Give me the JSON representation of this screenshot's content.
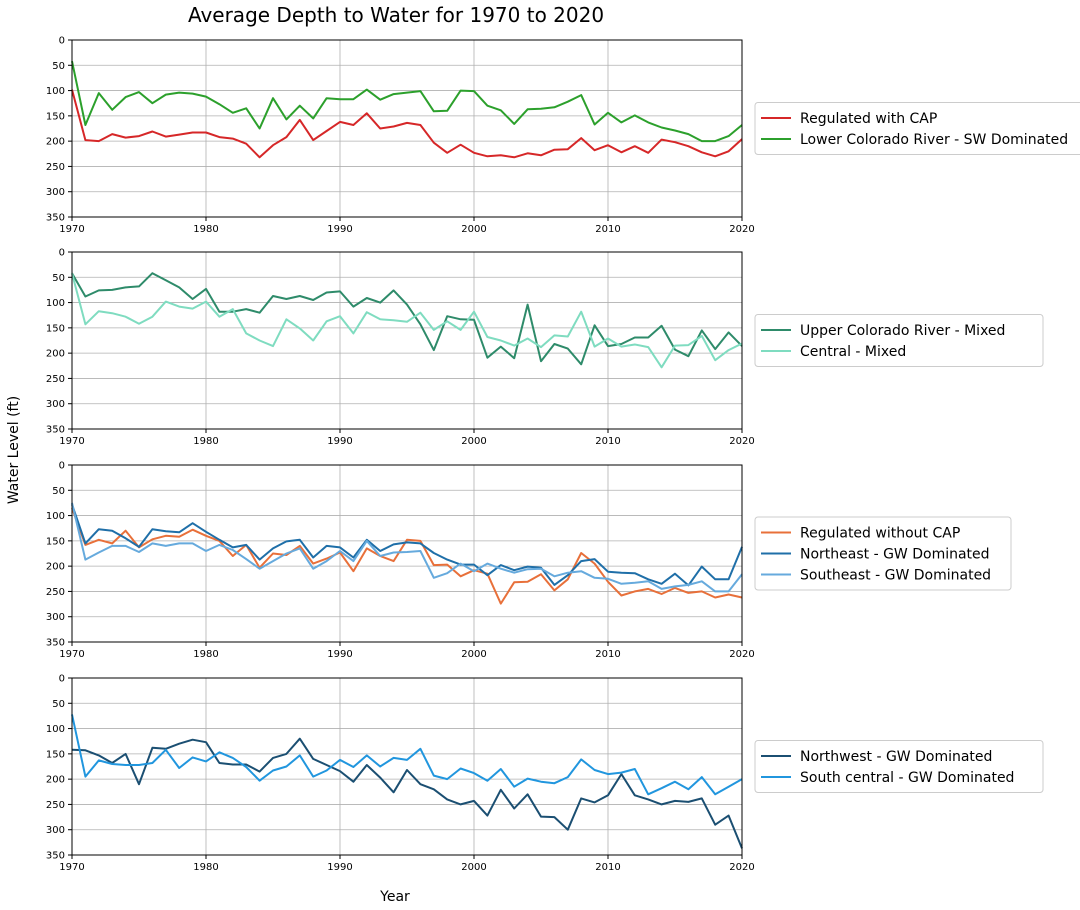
{
  "figure": {
    "title": "Average Depth to Water for 1970 to 2020",
    "xlabel": "Year",
    "ylabel": "Water Level (ft)"
  },
  "chart_data": [
    {
      "type": "line",
      "xlim": [
        1970,
        2020
      ],
      "ylim": [
        350,
        0
      ],
      "y_inverted": true,
      "xticks": [
        1970,
        1980,
        1990,
        2000,
        2010,
        2020
      ],
      "yticks": [
        0,
        50,
        100,
        150,
        200,
        250,
        300,
        350
      ],
      "grid": true,
      "legend_position": "right",
      "x": [
        1970,
        1971,
        1972,
        1973,
        1974,
        1975,
        1976,
        1977,
        1978,
        1979,
        1980,
        1981,
        1982,
        1983,
        1984,
        1985,
        1986,
        1987,
        1988,
        1989,
        1990,
        1991,
        1992,
        1993,
        1994,
        1995,
        1996,
        1997,
        1998,
        1999,
        2000,
        2001,
        2002,
        2003,
        2004,
        2005,
        2006,
        2007,
        2008,
        2009,
        2010,
        2011,
        2012,
        2013,
        2014,
        2015,
        2016,
        2017,
        2018,
        2019,
        2020
      ],
      "series": [
        {
          "name": "Regulated with CAP",
          "color": "#d62728",
          "values": [
            98,
            198,
            200,
            186,
            193,
            190,
            181,
            191,
            187,
            183,
            183,
            192,
            195,
            205,
            232,
            208,
            192,
            158,
            198,
            180,
            162,
            168,
            145,
            175,
            171,
            164,
            168,
            203,
            223,
            207,
            223,
            230,
            228,
            232,
            224,
            228,
            217,
            216,
            194,
            218,
            208,
            222,
            210,
            223,
            197,
            202,
            210,
            222,
            230,
            220,
            196
          ]
        },
        {
          "name": "Lower Colorado River - SW Dominated",
          "color": "#2ca02c",
          "values": [
            42,
            168,
            105,
            138,
            113,
            103,
            125,
            108,
            104,
            106,
            112,
            127,
            144,
            135,
            175,
            115,
            157,
            130,
            155,
            115,
            117,
            117,
            98,
            118,
            107,
            104,
            101,
            141,
            140,
            100,
            101,
            130,
            139,
            166,
            137,
            136,
            133,
            122,
            109,
            167,
            144,
            163,
            149,
            163,
            173,
            179,
            186,
            200,
            200,
            190,
            168
          ]
        }
      ]
    },
    {
      "type": "line",
      "xlim": [
        1970,
        2020
      ],
      "ylim": [
        350,
        0
      ],
      "y_inverted": true,
      "xticks": [
        1970,
        1980,
        1990,
        2000,
        2010,
        2020
      ],
      "yticks": [
        0,
        50,
        100,
        150,
        200,
        250,
        300,
        350
      ],
      "grid": true,
      "legend_position": "right",
      "x": [
        1970,
        1971,
        1972,
        1973,
        1974,
        1975,
        1976,
        1977,
        1978,
        1979,
        1980,
        1981,
        1982,
        1983,
        1984,
        1985,
        1986,
        1987,
        1988,
        1989,
        1990,
        1991,
        1992,
        1993,
        1994,
        1995,
        1996,
        1997,
        1998,
        1999,
        2000,
        2001,
        2002,
        2003,
        2004,
        2005,
        2006,
        2007,
        2008,
        2009,
        2010,
        2011,
        2012,
        2013,
        2014,
        2015,
        2016,
        2017,
        2018,
        2019,
        2020
      ],
      "series": [
        {
          "name": "Upper Colorado River - Mixed",
          "color": "#2e8b6a",
          "values": [
            42,
            88,
            76,
            75,
            70,
            68,
            42,
            56,
            70,
            93,
            73,
            118,
            118,
            113,
            120,
            87,
            93,
            87,
            95,
            80,
            78,
            108,
            91,
            100,
            76,
            104,
            143,
            194,
            127,
            133,
            134,
            209,
            187,
            210,
            104,
            216,
            182,
            191,
            222,
            145,
            186,
            182,
            169,
            169,
            146,
            193,
            206,
            155,
            192,
            159,
            186
          ]
        },
        {
          "name": "Central - Mixed",
          "color": "#7fdcc0",
          "values": [
            42,
            143,
            117,
            121,
            128,
            142,
            128,
            98,
            108,
            112,
            98,
            128,
            113,
            161,
            175,
            186,
            133,
            151,
            175,
            137,
            127,
            161,
            119,
            133,
            135,
            138,
            120,
            154,
            137,
            154,
            118,
            168,
            175,
            185,
            171,
            188,
            165,
            167,
            118,
            187,
            171,
            187,
            183,
            188,
            228,
            185,
            184,
            166,
            214,
            194,
            181
          ]
        }
      ]
    },
    {
      "type": "line",
      "xlim": [
        1970,
        2020
      ],
      "ylim": [
        350,
        0
      ],
      "y_inverted": true,
      "xticks": [
        1970,
        1980,
        1990,
        2000,
        2010,
        2020
      ],
      "yticks": [
        0,
        50,
        100,
        150,
        200,
        250,
        300,
        350
      ],
      "grid": true,
      "legend_position": "right",
      "x": [
        1970,
        1971,
        1972,
        1973,
        1974,
        1975,
        1976,
        1977,
        1978,
        1979,
        1980,
        1981,
        1982,
        1983,
        1984,
        1985,
        1986,
        1987,
        1988,
        1989,
        1990,
        1991,
        1992,
        1993,
        1994,
        1995,
        1996,
        1997,
        1998,
        1999,
        2000,
        2001,
        2002,
        2003,
        2004,
        2005,
        2006,
        2007,
        2008,
        2009,
        2010,
        2011,
        2012,
        2013,
        2014,
        2015,
        2016,
        2017,
        2018,
        2019,
        2020
      ],
      "series": [
        {
          "name": "Regulated without CAP",
          "color": "#e8703a",
          "values": [
            85,
            158,
            148,
            155,
            130,
            163,
            147,
            140,
            142,
            128,
            140,
            150,
            180,
            158,
            203,
            175,
            178,
            160,
            195,
            185,
            173,
            210,
            165,
            180,
            190,
            148,
            150,
            198,
            197,
            220,
            208,
            215,
            274,
            232,
            231,
            216,
            248,
            226,
            174,
            195,
            231,
            258,
            250,
            245,
            255,
            243,
            253,
            250,
            262,
            256,
            262
          ]
        },
        {
          "name": "Northeast - GW Dominated",
          "color": "#1f6fa8",
          "values": [
            78,
            155,
            127,
            130,
            145,
            162,
            127,
            131,
            133,
            115,
            132,
            148,
            163,
            158,
            187,
            165,
            151,
            148,
            183,
            160,
            163,
            183,
            148,
            170,
            157,
            153,
            155,
            174,
            187,
            197,
            197,
            218,
            198,
            208,
            201,
            203,
            237,
            218,
            190,
            186,
            211,
            213,
            214,
            226,
            235,
            215,
            238,
            201,
            226,
            226,
            162
          ]
        },
        {
          "name": "Southeast - GW Dominated",
          "color": "#66aadd",
          "values": [
            75,
            187,
            173,
            160,
            160,
            172,
            155,
            160,
            155,
            155,
            170,
            158,
            168,
            186,
            205,
            190,
            175,
            165,
            205,
            190,
            170,
            190,
            150,
            180,
            173,
            172,
            170,
            223,
            214,
            195,
            210,
            195,
            205,
            213,
            206,
            205,
            220,
            213,
            210,
            223,
            225,
            235,
            233,
            230,
            245,
            240,
            237,
            230,
            250,
            250,
            216
          ]
        }
      ]
    },
    {
      "type": "line",
      "xlim": [
        1970,
        2020
      ],
      "ylim": [
        350,
        0
      ],
      "y_inverted": true,
      "xticks": [
        1970,
        1980,
        1990,
        2000,
        2010,
        2020
      ],
      "yticks": [
        0,
        50,
        100,
        150,
        200,
        250,
        300,
        350
      ],
      "grid": true,
      "legend_position": "right",
      "x": [
        1970,
        1971,
        1972,
        1973,
        1974,
        1975,
        1976,
        1977,
        1978,
        1979,
        1980,
        1981,
        1982,
        1983,
        1984,
        1985,
        1986,
        1987,
        1988,
        1989,
        1990,
        1991,
        1992,
        1993,
        1994,
        1995,
        1996,
        1997,
        1998,
        1999,
        2000,
        2001,
        2002,
        2003,
        2004,
        2005,
        2006,
        2007,
        2008,
        2009,
        2010,
        2011,
        2012,
        2013,
        2014,
        2015,
        2016,
        2017,
        2018,
        2019,
        2020
      ],
      "series": [
        {
          "name": "Northwest - GW Dominated",
          "color": "#1b4f72",
          "values": [
            142,
            143,
            153,
            168,
            150,
            210,
            138,
            140,
            130,
            122,
            127,
            168,
            171,
            171,
            185,
            158,
            150,
            120,
            160,
            172,
            184,
            205,
            172,
            197,
            226,
            182,
            210,
            220,
            240,
            250,
            243,
            272,
            221,
            258,
            230,
            274,
            275,
            300,
            238,
            246,
            232,
            190,
            232,
            240,
            250,
            243,
            245,
            238,
            290,
            272,
            337
          ]
        },
        {
          "name": "South central - GW Dominated",
          "color": "#2196de",
          "values": [
            72,
            195,
            163,
            170,
            172,
            172,
            168,
            142,
            178,
            157,
            165,
            147,
            158,
            176,
            203,
            183,
            175,
            153,
            195,
            183,
            162,
            176,
            153,
            175,
            158,
            162,
            140,
            193,
            200,
            179,
            188,
            203,
            180,
            215,
            199,
            205,
            208,
            196,
            161,
            182,
            190,
            187,
            180,
            230,
            218,
            205,
            220,
            196,
            230,
            215,
            200
          ]
        }
      ]
    }
  ]
}
